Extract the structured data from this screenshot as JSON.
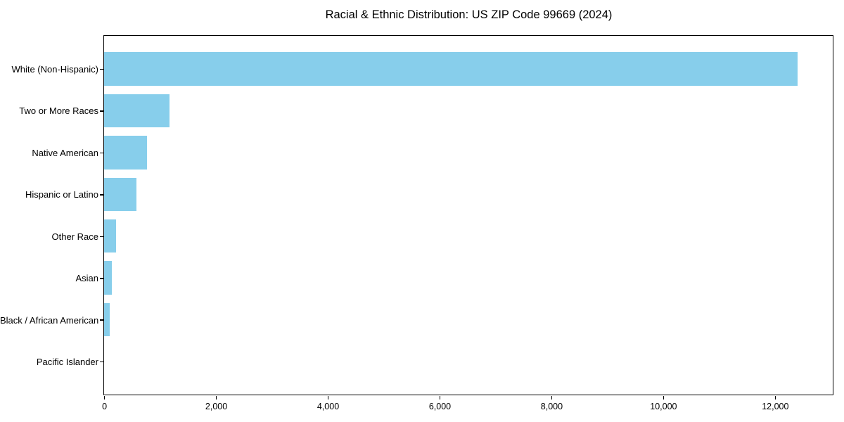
{
  "chart_data": {
    "type": "bar",
    "orientation": "horizontal",
    "title": "Racial & Ethnic Distribution: US ZIP Code 99669 (2024)",
    "categories": [
      "White (Non-Hispanic)",
      "Two or More Races",
      "Native American",
      "Hispanic or Latino",
      "Other Race",
      "Asian",
      "Black / African American",
      "Pacific Islander"
    ],
    "values": [
      12410,
      1175,
      765,
      575,
      220,
      140,
      100,
      0
    ],
    "xlabel": "",
    "ylabel": "",
    "x_ticks": [
      0,
      2000,
      4000,
      6000,
      8000,
      10000,
      12000
    ],
    "x_tick_labels": [
      "0",
      "2,000",
      "4,000",
      "6,000",
      "8,000",
      "10,000",
      "12,000"
    ],
    "xlim": [
      0,
      13035
    ],
    "grid": false,
    "legend": null,
    "bar_color": "#87CEEB",
    "spine_color": "#000000",
    "text_color": "#000000",
    "background_color": "#ffffff"
  }
}
